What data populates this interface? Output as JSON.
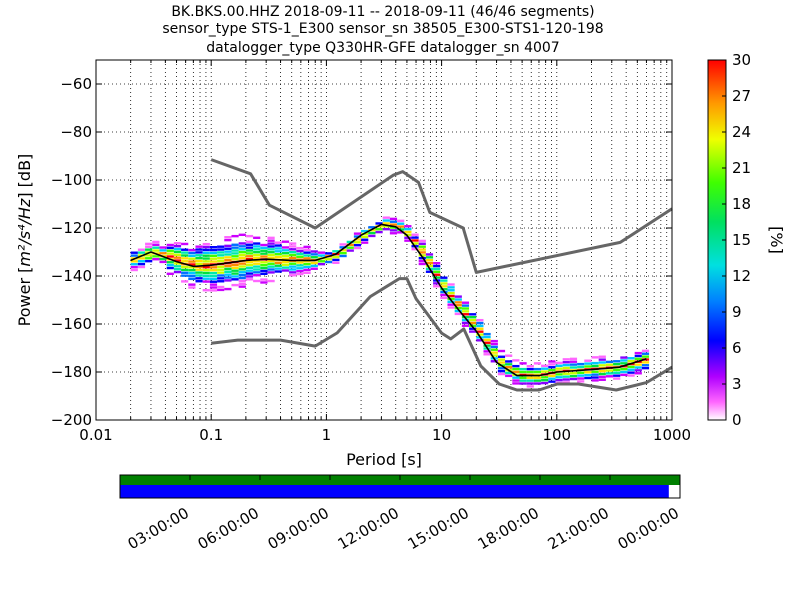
{
  "title": {
    "line1": "BK.BKS.00.HHZ   2018-09-11 -- 2018-09-11  (46/46 segments)",
    "line2": "sensor_type STS-1_E300 sensor_sn 38505_E300-STS1-120-198",
    "line3": "datalogger_type Q330HR-GFE datalogger_sn 4007"
  },
  "chart_data": {
    "type": "heatmap",
    "xlabel": "Period [s]",
    "ylabel_prefix": "Power [",
    "ylabel_units": "m²/s⁴/Hz",
    "ylabel_suffix": "] [dB]",
    "x_scale": "log",
    "xlim": [
      0.01,
      1000
    ],
    "ylim": [
      -200,
      -50
    ],
    "xticks": [
      0.01,
      0.1,
      1,
      10,
      100,
      1000
    ],
    "xtick_labels": [
      "0.01",
      "0.1",
      "1",
      "10",
      "100",
      "1000"
    ],
    "yticks": [
      -200,
      -180,
      -160,
      -140,
      -120,
      -100,
      -80,
      -60
    ],
    "ytick_labels": [
      "−200",
      "−180",
      "−160",
      "−140",
      "−120",
      "−100",
      "−80",
      "−60"
    ],
    "grid": "dotted",
    "colorbar": {
      "label": "[%]",
      "range": [
        0,
        30
      ],
      "ticks": [
        0,
        3,
        6,
        9,
        12,
        15,
        18,
        21,
        24,
        27,
        30
      ],
      "tick_labels": [
        "0",
        "3",
        "6",
        "9",
        "12",
        "15",
        "18",
        "21",
        "24",
        "27",
        "30"
      ]
    },
    "high_noise_model": [
      [
        0.1,
        -91.5
      ],
      [
        0.22,
        -97.4
      ],
      [
        0.32,
        -110.5
      ],
      [
        0.8,
        -120.0
      ],
      [
        3.8,
        -98.0
      ],
      [
        4.6,
        -96.5
      ],
      [
        6.3,
        -101.0
      ],
      [
        7.9,
        -113.5
      ],
      [
        15.4,
        -120.0
      ],
      [
        20.0,
        -138.5
      ],
      [
        354.8,
        -126.0
      ],
      [
        1000,
        -112.0
      ]
    ],
    "low_noise_model": [
      [
        0.1,
        -168.0
      ],
      [
        0.17,
        -166.7
      ],
      [
        0.4,
        -166.7
      ],
      [
        0.8,
        -169.2
      ],
      [
        1.24,
        -163.7
      ],
      [
        2.4,
        -148.6
      ],
      [
        4.3,
        -141.1
      ],
      [
        5.0,
        -141.1
      ],
      [
        6.0,
        -149.4
      ],
      [
        10.0,
        -163.8
      ],
      [
        12.0,
        -166.2
      ],
      [
        15.6,
        -162.1
      ],
      [
        21.9,
        -177.5
      ],
      [
        31.6,
        -185.0
      ],
      [
        45.0,
        -187.5
      ],
      [
        70.0,
        -187.5
      ],
      [
        101.0,
        -185.0
      ],
      [
        154.0,
        -185.0
      ],
      [
        328.0,
        -187.5
      ],
      [
        600.0,
        -184.4
      ],
      [
        1000,
        -178.0
      ]
    ],
    "mode_curve": [
      [
        0.02,
        -133.5
      ],
      [
        0.03,
        -130.0
      ],
      [
        0.05,
        -134.0
      ],
      [
        0.07,
        -136.0
      ],
      [
        0.1,
        -135.5
      ],
      [
        0.2,
        -133.5
      ],
      [
        0.3,
        -133.0
      ],
      [
        0.5,
        -133.5
      ],
      [
        0.8,
        -133.5
      ],
      [
        1.2,
        -131.0
      ],
      [
        2.0,
        -123.0
      ],
      [
        3.0,
        -118.5
      ],
      [
        4.0,
        -119.5
      ],
      [
        5.0,
        -123.0
      ],
      [
        7.0,
        -133.0
      ],
      [
        10.0,
        -145.0
      ],
      [
        14.0,
        -154.0
      ],
      [
        20.0,
        -163.0
      ],
      [
        30.0,
        -176.0
      ],
      [
        45.0,
        -181.5
      ],
      [
        70.0,
        -181.5
      ],
      [
        100.0,
        -180.0
      ],
      [
        200.0,
        -179.0
      ],
      [
        350.0,
        -178.0
      ],
      [
        600.0,
        -174.5
      ]
    ],
    "noise_model_color": "#666666",
    "mode_color": "#000000"
  },
  "timeline": {
    "tick_labels": [
      "03:00:00",
      "06:00:00",
      "09:00:00",
      "12:00:00",
      "15:00:00",
      "18:00:00",
      "21:00:00",
      "00:00:00"
    ],
    "coverage_fraction": 0.98,
    "green_color": "#008000",
    "blue_color": "#0000ff"
  }
}
